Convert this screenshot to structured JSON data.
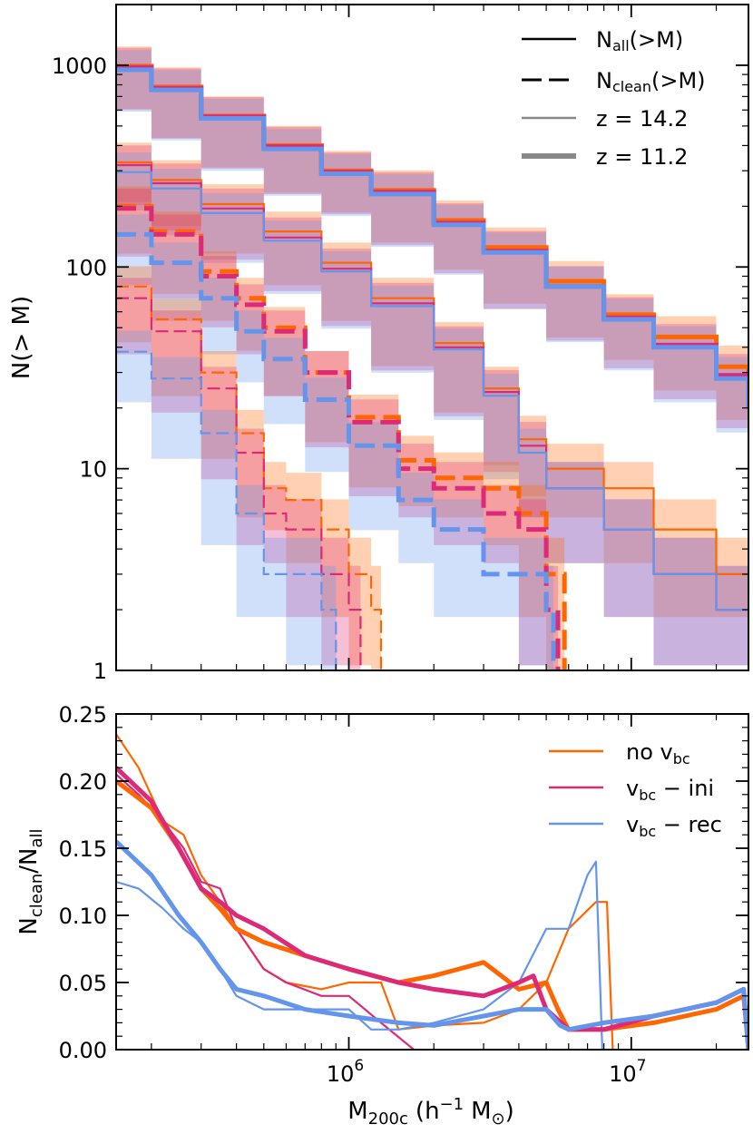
{
  "colors": {
    "no_vbc": "#FF6600",
    "vbc_ini": "#DD2A78",
    "vbc_rec": "#6495ED",
    "legend_gray": "#888888"
  },
  "chart_data": [
    {
      "panel": "top",
      "type": "line",
      "xscale": "log",
      "yscale": "log",
      "xlim": [
        150000,
        26000000
      ],
      "ylim": [
        1,
        2000
      ],
      "ylabel": "N(> M)",
      "yticks": [
        1,
        10,
        100,
        1000
      ],
      "ytick_labels": [
        "1",
        "10",
        "100",
        "1000"
      ],
      "legend": {
        "placement": "top-right",
        "entries": [
          {
            "label": "N",
            "sub": "all",
            "suffix": "(>M)",
            "style": "solid",
            "width": "thin"
          },
          {
            "label": "N",
            "sub": "clean",
            "suffix": "(>M)",
            "style": "dashed",
            "width": "thin"
          },
          {
            "label": "z = 14.2",
            "style": "solid",
            "width": "thin",
            "color": "gray"
          },
          {
            "label": "z = 11.2",
            "style": "solid",
            "width": "thick",
            "color": "gray"
          }
        ]
      },
      "series": [
        {
          "name": "no vbc, all, z=11.2",
          "color": "no_vbc",
          "style": "solid",
          "width": "thick",
          "x": [
            150000,
            200000,
            300000,
            500000,
            800000,
            1200000,
            2000000,
            3000000,
            5000000,
            8000000,
            12000000,
            20000000,
            26000000
          ],
          "y": [
            990,
            780,
            560,
            400,
            300,
            240,
            170,
            125,
            85,
            58,
            45,
            32,
            23
          ]
        },
        {
          "name": "vbc-ini, all, z=11.2",
          "color": "vbc_ini",
          "style": "solid",
          "width": "thick",
          "x": [
            150000,
            200000,
            300000,
            500000,
            800000,
            1200000,
            2000000,
            3000000,
            5000000,
            8000000,
            12000000,
            20000000,
            26000000
          ],
          "y": [
            975,
            770,
            555,
            395,
            295,
            235,
            165,
            120,
            80,
            56,
            41,
            29,
            21
          ]
        },
        {
          "name": "vbc-rec, all, z=11.2",
          "color": "vbc_rec",
          "style": "solid",
          "width": "thick",
          "x": [
            150000,
            200000,
            300000,
            500000,
            800000,
            1200000,
            2000000,
            3000000,
            5000000,
            8000000,
            12000000,
            20000000,
            26000000
          ],
          "y": [
            950,
            755,
            545,
            385,
            290,
            230,
            162,
            118,
            80,
            55,
            40,
            28,
            20
          ]
        },
        {
          "name": "no vbc, all, z=14.2",
          "color": "no_vbc",
          "style": "solid",
          "width": "thin",
          "x": [
            150000,
            200000,
            300000,
            500000,
            800000,
            1200000,
            2000000,
            3000000,
            4000000,
            5000000,
            8000000,
            12000000,
            20000000,
            26000000
          ],
          "y": [
            330,
            270,
            205,
            150,
            105,
            70,
            42,
            25,
            14,
            10,
            8,
            5,
            3,
            3
          ]
        },
        {
          "name": "vbc-ini, all, z=14.2",
          "color": "vbc_ini",
          "style": "solid",
          "width": "thin",
          "x": [
            150000,
            200000,
            300000,
            500000,
            800000,
            1200000,
            2000000,
            3000000,
            4000000,
            5000000,
            8000000,
            12000000,
            20000000,
            26000000
          ],
          "y": [
            320,
            260,
            195,
            140,
            98,
            66,
            40,
            24,
            13,
            8,
            5,
            3,
            2,
            2
          ]
        },
        {
          "name": "vbc-rec, all, z=14.2",
          "color": "vbc_rec",
          "style": "solid",
          "width": "thin",
          "x": [
            150000,
            200000,
            300000,
            500000,
            800000,
            1200000,
            2000000,
            3000000,
            4000000,
            5000000,
            8000000,
            12000000,
            20000000,
            26000000
          ],
          "y": [
            295,
            245,
            185,
            135,
            95,
            64,
            39,
            23,
            12,
            8,
            5,
            3,
            2,
            2
          ]
        },
        {
          "name": "no vbc, clean, z=11.2",
          "color": "no_vbc",
          "style": "dashed",
          "width": "thick",
          "x": [
            150000,
            200000,
            300000,
            400000,
            500000,
            700000,
            1000000,
            1500000,
            2000000,
            3000000,
            4000000,
            5000000,
            5800000
          ],
          "y": [
            200,
            150,
            95,
            70,
            50,
            30,
            18,
            11,
            9,
            8,
            6,
            3,
            1
          ]
        },
        {
          "name": "vbc-ini, clean, z=11.2",
          "color": "vbc_ini",
          "style": "dashed",
          "width": "thick",
          "x": [
            150000,
            200000,
            300000,
            400000,
            500000,
            700000,
            1000000,
            1500000,
            2000000,
            3000000,
            4000000,
            5000000,
            5500000
          ],
          "y": [
            195,
            145,
            90,
            65,
            48,
            30,
            17,
            10,
            8,
            6,
            5,
            2,
            1
          ]
        },
        {
          "name": "vbc-rec, clean, z=11.2",
          "color": "vbc_rec",
          "style": "dashed",
          "width": "thick",
          "x": [
            150000,
            200000,
            300000,
            400000,
            500000,
            700000,
            1000000,
            1500000,
            2000000,
            3000000,
            4000000,
            5000000,
            5300000
          ],
          "y": [
            145,
            105,
            70,
            48,
            35,
            22,
            13,
            7,
            5,
            3,
            3,
            2,
            1
          ]
        },
        {
          "name": "no vbc, clean, z=14.2",
          "color": "no_vbc",
          "style": "dashed",
          "width": "thin",
          "x": [
            150000,
            200000,
            300000,
            400000,
            500000,
            600000,
            800000,
            1000000,
            1200000,
            1300000
          ],
          "y": [
            80,
            55,
            30,
            15,
            8,
            7,
            5,
            3,
            2,
            1
          ]
        },
        {
          "name": "vbc-ini, clean, z=14.2",
          "color": "vbc_ini",
          "style": "dashed",
          "width": "thin",
          "x": [
            150000,
            200000,
            300000,
            400000,
            500000,
            600000,
            800000,
            1000000,
            1100000
          ],
          "y": [
            70,
            48,
            25,
            12,
            6,
            5,
            3,
            2,
            1
          ]
        },
        {
          "name": "vbc-rec, clean, z=14.2",
          "color": "vbc_rec",
          "style": "dashed",
          "width": "thin",
          "x": [
            150000,
            200000,
            300000,
            400000,
            500000,
            600000,
            800000,
            900000
          ],
          "y": [
            38,
            28,
            15,
            6,
            3,
            3,
            2,
            1
          ]
        }
      ]
    },
    {
      "panel": "bottom",
      "type": "line",
      "xscale": "log",
      "yscale": "linear",
      "xlim": [
        150000,
        26000000
      ],
      "ylim": [
        0,
        0.25
      ],
      "xlabel": "M",
      "xlabel_sub": "200c",
      "xlabel_suffix": "(h",
      "xlabel_sup": "−1",
      "xlabel_end": "M",
      "ylabel": "N",
      "ylabel_sub1": "clean",
      "ylabel_mid": "/N",
      "ylabel_sub2": "all",
      "yticks": [
        0.0,
        0.05,
        0.1,
        0.15,
        0.2,
        0.25
      ],
      "ytick_labels": [
        "0.00",
        "0.05",
        "0.10",
        "0.15",
        "0.20",
        "0.25"
      ],
      "xticks": [
        1000000,
        10000000
      ],
      "xtick_labels": [
        {
          "base": "10",
          "exp": "6"
        },
        {
          "base": "10",
          "exp": "7"
        }
      ],
      "legend": {
        "placement": "top-right",
        "entries": [
          {
            "text": "no v",
            "sub": "bc",
            "after": "",
            "color": "no_vbc"
          },
          {
            "text": "v",
            "sub": "bc",
            "after": " − ini",
            "color": "vbc_ini"
          },
          {
            "text": "v",
            "sub": "bc",
            "after": " − rec",
            "color": "vbc_rec"
          }
        ]
      },
      "series": [
        {
          "name": "no vbc, z=14.2",
          "color": "no_vbc",
          "width": "thin",
          "x": [
            150000,
            180000,
            220000,
            260000,
            300000,
            350000,
            400000,
            500000,
            600000,
            800000,
            1000000,
            1300000,
            1500000,
            2000000,
            3000000,
            4000000,
            5000000,
            6000000,
            7500000,
            8200000,
            8600000
          ],
          "y": [
            0.235,
            0.21,
            0.17,
            0.16,
            0.13,
            0.11,
            0.09,
            0.06,
            0.05,
            0.045,
            0.05,
            0.05,
            0.015,
            0.018,
            0.02,
            0.03,
            0.05,
            0.09,
            0.11,
            0.11,
            0.0
          ]
        },
        {
          "name": "vbc-ini, z=14.2",
          "color": "vbc_ini",
          "width": "thin",
          "x": [
            150000,
            180000,
            220000,
            260000,
            300000,
            350000,
            400000,
            500000,
            600000,
            800000,
            1000000,
            1300000,
            1700000
          ],
          "y": [
            0.205,
            0.19,
            0.17,
            0.15,
            0.125,
            0.12,
            0.09,
            0.06,
            0.05,
            0.04,
            0.04,
            0.02,
            0.0
          ]
        },
        {
          "name": "vbc-rec, z=14.2",
          "color": "vbc_rec",
          "width": "thin",
          "x": [
            150000,
            180000,
            220000,
            260000,
            300000,
            350000,
            400000,
            500000,
            600000,
            800000,
            1000000,
            1200000,
            1500000,
            2000000,
            3000000,
            4000000,
            5000000,
            6000000,
            7000000,
            7500000,
            7900000
          ],
          "y": [
            0.125,
            0.12,
            0.105,
            0.09,
            0.08,
            0.06,
            0.04,
            0.03,
            0.03,
            0.03,
            0.03,
            0.015,
            0.015,
            0.02,
            0.03,
            0.05,
            0.09,
            0.09,
            0.13,
            0.14,
            0.0
          ]
        },
        {
          "name": "no vbc, z=11.2",
          "color": "no_vbc",
          "width": "thick",
          "x": [
            150000,
            200000,
            250000,
            300000,
            350000,
            400000,
            500000,
            700000,
            1000000,
            1500000,
            2000000,
            3000000,
            4000000,
            5000000,
            5500000,
            6000000,
            8000000,
            12000000,
            20000000,
            25000000,
            26000000
          ],
          "y": [
            0.2,
            0.18,
            0.15,
            0.12,
            0.105,
            0.09,
            0.08,
            0.07,
            0.06,
            0.05,
            0.055,
            0.065,
            0.045,
            0.05,
            0.03,
            0.015,
            0.015,
            0.02,
            0.03,
            0.04,
            0.0
          ]
        },
        {
          "name": "vbc-ini, z=11.2",
          "color": "vbc_ini",
          "width": "thick",
          "x": [
            150000,
            200000,
            250000,
            300000,
            350000,
            400000,
            500000,
            700000,
            1000000,
            1500000,
            2000000,
            3000000,
            4000000,
            4500000,
            5000000,
            6000000,
            8000000,
            12000000,
            20000000,
            25000000,
            26000000
          ],
          "y": [
            0.21,
            0.185,
            0.15,
            0.12,
            0.11,
            0.1,
            0.09,
            0.07,
            0.06,
            0.05,
            0.045,
            0.04,
            0.05,
            0.055,
            0.03,
            0.015,
            0.015,
            0.025,
            0.035,
            0.045,
            0.0
          ]
        },
        {
          "name": "vbc-rec, z=11.2",
          "color": "vbc_rec",
          "width": "thick",
          "x": [
            150000,
            200000,
            250000,
            300000,
            350000,
            400000,
            500000,
            700000,
            1000000,
            1500000,
            2000000,
            3000000,
            4000000,
            5000000,
            5600000,
            6000000,
            8000000,
            12000000,
            20000000,
            25000000,
            26000000
          ],
          "y": [
            0.155,
            0.13,
            0.1,
            0.08,
            0.06,
            0.045,
            0.04,
            0.03,
            0.025,
            0.02,
            0.018,
            0.025,
            0.03,
            0.03,
            0.018,
            0.015,
            0.02,
            0.025,
            0.035,
            0.045,
            0.0
          ]
        }
      ]
    }
  ]
}
